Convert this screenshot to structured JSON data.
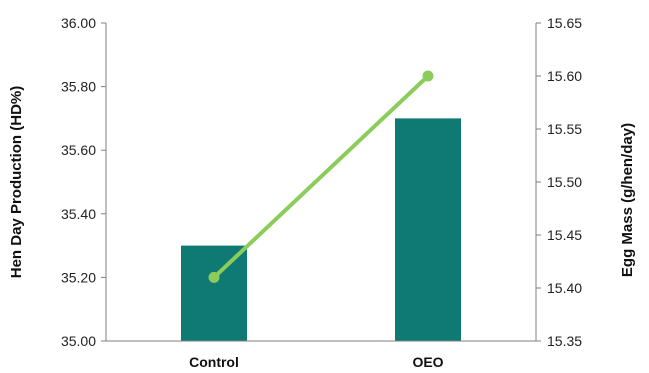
{
  "chart_data": {
    "type": "bar",
    "categories": [
      "Control",
      "OEO"
    ],
    "series": [
      {
        "name": "Hen Day Production (HD%)",
        "kind": "bar",
        "axis": "left",
        "values": [
          35.3,
          35.7
        ],
        "color": "#0f7a73"
      },
      {
        "name": "Egg Mass (g/hen/day)",
        "kind": "line",
        "axis": "right",
        "values": [
          15.41,
          15.6
        ],
        "color": "#8ccc5a"
      }
    ],
    "ylabel": "Hen Day Production (HD%)",
    "y2label": "Egg Mass (g/hen/day)",
    "ylim": [
      35.0,
      36.0
    ],
    "y2lim": [
      15.35,
      15.65
    ],
    "yticks": [
      "35.00",
      "35.20",
      "35.40",
      "35.60",
      "35.80",
      "36.00"
    ],
    "y2ticks": [
      "15.35",
      "15.40",
      "15.45",
      "15.50",
      "15.55",
      "15.60",
      "15.65"
    ],
    "grid": false,
    "legend": "none"
  }
}
